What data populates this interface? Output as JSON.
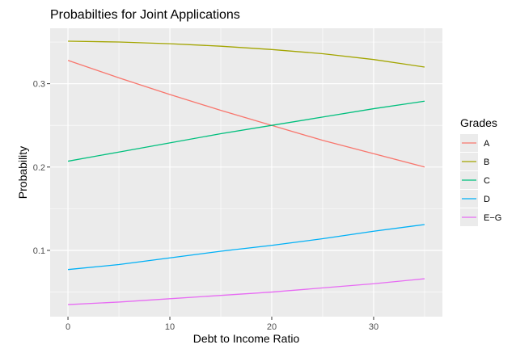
{
  "chart_data": {
    "type": "line",
    "title": "Probabilties for Joint Applications",
    "xlabel": "Debt to Income Ratio",
    "ylabel": "Probability",
    "xlim": [
      -1.75,
      36.75
    ],
    "ylim": [
      0.0205,
      0.3665
    ],
    "x_ticks": [
      0,
      10,
      20,
      30
    ],
    "y_ticks": [
      0.1,
      0.2,
      0.3
    ],
    "x_tick_labels": [
      "0",
      "10",
      "20",
      "30"
    ],
    "y_tick_labels": [
      "0.1",
      "0.2",
      "0.3"
    ],
    "grid": true,
    "legend_title": "Grades",
    "legend_position": "right",
    "x": [
      0,
      5,
      10,
      15,
      20,
      25,
      30,
      35
    ],
    "series": [
      {
        "name": "A",
        "color": "#F8766D",
        "values": [
          0.328,
          0.307,
          0.287,
          0.268,
          0.25,
          0.232,
          0.216,
          0.2
        ]
      },
      {
        "name": "B",
        "color": "#A3A500",
        "values": [
          0.351,
          0.35,
          0.348,
          0.345,
          0.341,
          0.336,
          0.329,
          0.32
        ]
      },
      {
        "name": "C",
        "color": "#00BF7D",
        "values": [
          0.207,
          0.218,
          0.229,
          0.24,
          0.25,
          0.26,
          0.27,
          0.279
        ]
      },
      {
        "name": "D",
        "color": "#00B0F6",
        "values": [
          0.077,
          0.083,
          0.091,
          0.099,
          0.106,
          0.114,
          0.123,
          0.131
        ]
      },
      {
        "name": "E−G",
        "color": "#E76BF3",
        "values": [
          0.035,
          0.038,
          0.042,
          0.046,
          0.05,
          0.055,
          0.06,
          0.066
        ]
      }
    ]
  }
}
